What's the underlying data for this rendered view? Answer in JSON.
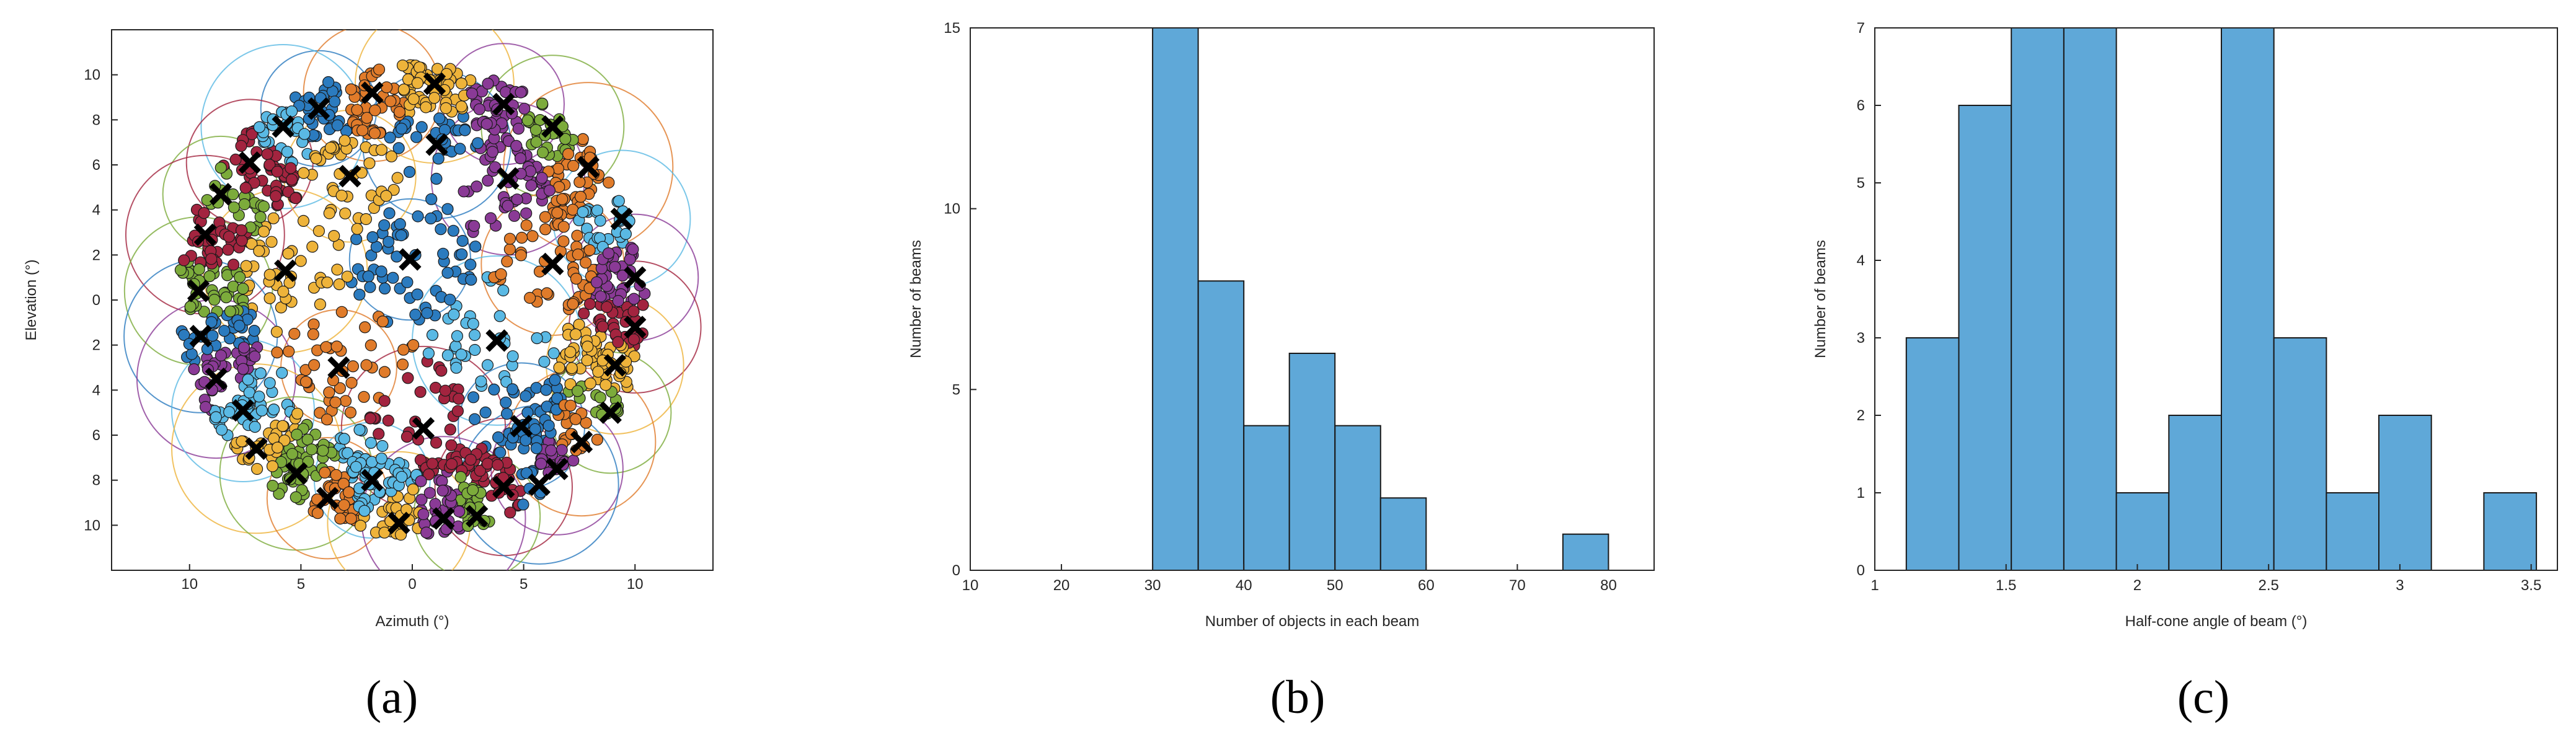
{
  "colors": {
    "bar_fill": "#5fa8d8",
    "bar_edge": "#1a1a1a",
    "axis": "#262626",
    "marker": "#000000",
    "cluster_palette": [
      "#2b7bbf",
      "#e07b2a",
      "#eeb33a",
      "#8a3a96",
      "#7cab3b",
      "#5ab9e4",
      "#a3243f"
    ]
  },
  "panel_labels": [
    "(a)",
    "(b)",
    "(c)"
  ],
  "chart_data": [
    {
      "type": "scatter",
      "panel": "(a)",
      "title": "",
      "xlabel": "Azimuth (°)",
      "ylabel": "Elevation (°)",
      "xlim": [
        -13.5,
        13.5
      ],
      "ylim": [
        -12,
        12
      ],
      "xticks": [
        "10",
        "5",
        "0",
        "5",
        "10"
      ],
      "xtick_values": [
        -10,
        -5,
        0,
        5,
        10
      ],
      "yticks": [
        "10",
        "8",
        "6",
        "4",
        "2",
        "0",
        "2",
        "4",
        "6",
        "8",
        "10"
      ],
      "ytick_values": [
        10,
        8,
        6,
        4,
        2,
        0,
        -2,
        -4,
        -6,
        -8,
        -10
      ],
      "marker_symbol": "cross",
      "beam_centers": [
        {
          "x": -4.2,
          "y": 8.5
        },
        {
          "x": -1.8,
          "y": 9.2
        },
        {
          "x": 1.0,
          "y": 9.6
        },
        {
          "x": 4.1,
          "y": 8.7
        },
        {
          "x": 6.3,
          "y": 7.7
        },
        {
          "x": -5.8,
          "y": 7.7
        },
        {
          "x": -7.3,
          "y": 6.1
        },
        {
          "x": 1.1,
          "y": 6.9
        },
        {
          "x": 7.9,
          "y": 5.9
        },
        {
          "x": -2.8,
          "y": 5.5
        },
        {
          "x": 4.3,
          "y": 5.4
        },
        {
          "x": -8.6,
          "y": 4.7
        },
        {
          "x": 9.4,
          "y": 3.6
        },
        {
          "x": -9.3,
          "y": 2.9
        },
        {
          "x": -0.1,
          "y": 1.8
        },
        {
          "x": 6.3,
          "y": 1.6
        },
        {
          "x": -5.7,
          "y": 1.3
        },
        {
          "x": 10.0,
          "y": 1.0
        },
        {
          "x": -9.6,
          "y": 0.4
        },
        {
          "x": 3.8,
          "y": -1.8
        },
        {
          "x": 10.0,
          "y": -1.2
        },
        {
          "x": -9.5,
          "y": -1.6
        },
        {
          "x": -3.3,
          "y": -3.0
        },
        {
          "x": 9.1,
          "y": -2.9
        },
        {
          "x": -8.8,
          "y": -3.5
        },
        {
          "x": 8.9,
          "y": -5.0
        },
        {
          "x": -7.6,
          "y": -4.9
        },
        {
          "x": 0.5,
          "y": -5.7
        },
        {
          "x": 4.9,
          "y": -5.6
        },
        {
          "x": 7.6,
          "y": -6.3
        },
        {
          "x": -7.0,
          "y": -6.6
        },
        {
          "x": 6.5,
          "y": -7.5
        },
        {
          "x": -5.2,
          "y": -7.7
        },
        {
          "x": -1.8,
          "y": -8.0
        },
        {
          "x": 4.1,
          "y": -8.3
        },
        {
          "x": 5.7,
          "y": -8.2
        },
        {
          "x": -3.8,
          "y": -8.8
        },
        {
          "x": -0.6,
          "y": -9.9
        },
        {
          "x": 1.4,
          "y": -9.7
        },
        {
          "x": 2.9,
          "y": -9.6
        }
      ]
    },
    {
      "type": "bar",
      "panel": "(b)",
      "title": "",
      "xlabel": "Number of objects in each beam",
      "ylabel": "Number of beams",
      "xlim": [
        10,
        85
      ],
      "ylim": [
        0,
        15
      ],
      "xticks": [
        "10",
        "20",
        "30",
        "40",
        "50",
        "60",
        "70",
        "80"
      ],
      "xtick_values": [
        10,
        20,
        30,
        40,
        50,
        60,
        70,
        80
      ],
      "yticks": [
        "0",
        "5",
        "10",
        "15"
      ],
      "ytick_values": [
        0,
        5,
        10,
        15
      ],
      "bins": [
        {
          "start": 30,
          "end": 35,
          "value": 15
        },
        {
          "start": 35,
          "end": 40,
          "value": 8
        },
        {
          "start": 40,
          "end": 45,
          "value": 4
        },
        {
          "start": 45,
          "end": 50,
          "value": 6
        },
        {
          "start": 50,
          "end": 55,
          "value": 4
        },
        {
          "start": 55,
          "end": 60,
          "value": 2
        },
        {
          "start": 75,
          "end": 80,
          "value": 1
        }
      ]
    },
    {
      "type": "bar",
      "panel": "(c)",
      "title": "",
      "xlabel": "Half-cone angle of beam (°)",
      "ylabel": "Number of beams",
      "xlim": [
        1,
        3.6
      ],
      "ylim": [
        0,
        7
      ],
      "xticks": [
        "1",
        "1.5",
        "2",
        "2.5",
        "3",
        "3.5"
      ],
      "xtick_values": [
        1,
        1.5,
        2,
        2.5,
        3,
        3.5
      ],
      "yticks": [
        "0",
        "1",
        "2",
        "3",
        "4",
        "5",
        "6",
        "7"
      ],
      "ytick_values": [
        0,
        1,
        2,
        3,
        4,
        5,
        6,
        7
      ],
      "bins": [
        {
          "start": 1.12,
          "end": 1.32,
          "value": 3
        },
        {
          "start": 1.32,
          "end": 1.52,
          "value": 6
        },
        {
          "start": 1.52,
          "end": 1.72,
          "value": 7
        },
        {
          "start": 1.72,
          "end": 1.92,
          "value": 7
        },
        {
          "start": 1.92,
          "end": 2.12,
          "value": 1
        },
        {
          "start": 2.12,
          "end": 2.32,
          "value": 2
        },
        {
          "start": 2.32,
          "end": 2.52,
          "value": 7
        },
        {
          "start": 2.52,
          "end": 2.72,
          "value": 3
        },
        {
          "start": 2.72,
          "end": 2.92,
          "value": 1
        },
        {
          "start": 2.92,
          "end": 3.12,
          "value": 2
        },
        {
          "start": 3.12,
          "end": 3.32,
          "value": 0
        },
        {
          "start": 3.32,
          "end": 3.52,
          "value": 1
        }
      ]
    }
  ]
}
